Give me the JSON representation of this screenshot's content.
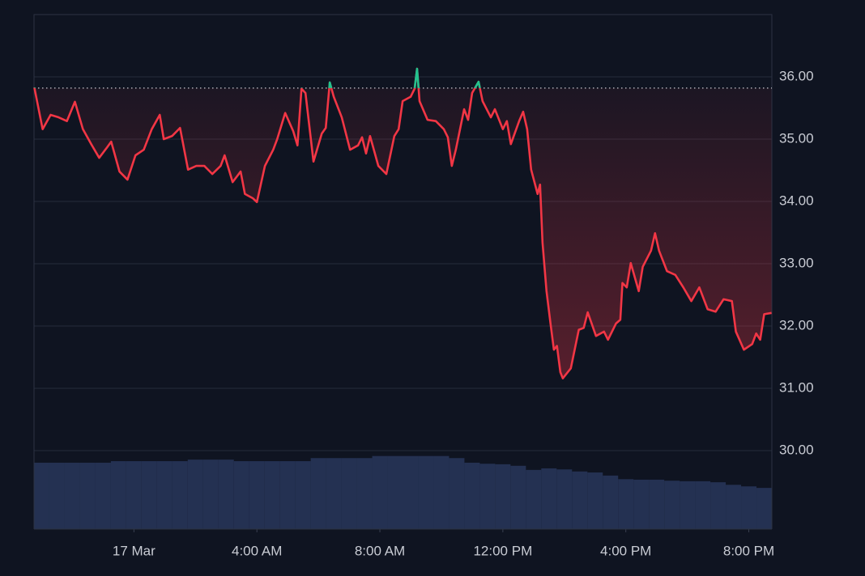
{
  "chart_data": {
    "type": "line",
    "x": [
      -3.24,
      -2.97,
      -2.71,
      -2.45,
      -2.18,
      -1.92,
      -1.66,
      -1.39,
      -1.13,
      -0.87,
      -0.74,
      -0.47,
      -0.21,
      0.05,
      0.32,
      0.58,
      0.84,
      0.97,
      1.24,
      1.5,
      1.76,
      2.03,
      2.29,
      2.55,
      2.82,
      2.95,
      3.21,
      3.47,
      3.61,
      3.87,
      4.0,
      4.26,
      4.53,
      4.66,
      4.92,
      5.18,
      5.32,
      5.45,
      5.58,
      5.84,
      6.11,
      6.24,
      6.37,
      6.5,
      6.76,
      7.03,
      7.29,
      7.42,
      7.55,
      7.68,
      7.95,
      8.21,
      8.47,
      8.61,
      8.74,
      9.0,
      9.13,
      9.21,
      9.29,
      9.55,
      9.82,
      10.08,
      10.21,
      10.34,
      10.47,
      10.74,
      10.87,
      11.0,
      11.21,
      11.34,
      11.61,
      11.74,
      12.0,
      12.13,
      12.26,
      12.53,
      12.66,
      12.79,
      12.92,
      13.13,
      13.21,
      13.29,
      13.42,
      13.55,
      13.66,
      13.76,
      13.87,
      13.95,
      14.21,
      14.47,
      14.63,
      14.76,
      15.03,
      15.29,
      15.42,
      15.68,
      15.82,
      15.89,
      16.03,
      16.16,
      16.42,
      16.55,
      16.82,
      16.95,
      17.08,
      17.34,
      17.61,
      17.87,
      18.13,
      18.39,
      18.66,
      18.92,
      19.18,
      19.45,
      19.58,
      19.84,
      20.11,
      20.24,
      20.37,
      20.5,
      20.74
    ],
    "series": [
      {
        "color": "#f23645",
        "up_color": "#22c38e",
        "values": [
          35.83,
          35.16,
          35.39,
          35.35,
          35.29,
          35.6,
          35.16,
          34.92,
          34.7,
          34.87,
          34.96,
          34.48,
          34.35,
          34.74,
          34.83,
          35.16,
          35.39,
          35.0,
          35.05,
          35.18,
          34.51,
          34.57,
          34.57,
          34.44,
          34.57,
          34.74,
          34.31,
          34.48,
          34.12,
          34.05,
          33.99,
          34.57,
          34.83,
          35.0,
          35.42,
          35.13,
          34.9,
          35.81,
          35.74,
          34.64,
          35.09,
          35.18,
          35.91,
          35.68,
          35.35,
          34.83,
          34.9,
          35.03,
          34.77,
          35.05,
          34.57,
          34.44,
          35.05,
          35.16,
          35.61,
          35.68,
          35.81,
          36.13,
          35.61,
          35.31,
          35.29,
          35.16,
          35.03,
          34.57,
          34.83,
          35.48,
          35.31,
          35.74,
          35.92,
          35.61,
          35.35,
          35.48,
          35.16,
          35.29,
          34.92,
          35.29,
          35.44,
          35.16,
          34.51,
          34.12,
          34.27,
          33.34,
          32.56,
          32.04,
          31.62,
          31.68,
          31.26,
          31.16,
          31.32,
          31.94,
          31.97,
          32.22,
          31.84,
          31.91,
          31.78,
          32.04,
          32.1,
          32.69,
          32.62,
          33.01,
          32.56,
          32.95,
          33.21,
          33.49,
          33.21,
          32.88,
          32.82,
          32.62,
          32.4,
          32.62,
          32.27,
          32.23,
          32.43,
          32.4,
          31.91,
          31.62,
          31.71,
          31.88,
          31.78,
          32.19,
          32.21
        ]
      }
    ],
    "baseline": 35.82,
    "xlim": [
      -3.25,
      20.75
    ],
    "xticks": [
      {
        "value": 0,
        "label": "17 Mar"
      },
      {
        "value": 4,
        "label": "4:00 AM"
      },
      {
        "value": 8,
        "label": "8:00 AM"
      },
      {
        "value": 12,
        "label": "12:00 PM"
      },
      {
        "value": 16,
        "label": "4:00 PM"
      },
      {
        "value": 20,
        "label": "8:00 PM"
      }
    ],
    "ylim": [
      28.74,
      37.0
    ],
    "yticks": [
      {
        "value": 30,
        "label": "30.00"
      },
      {
        "value": 31,
        "label": "31.00"
      },
      {
        "value": 32,
        "label": "32.00"
      },
      {
        "value": 33,
        "label": "33.00"
      },
      {
        "value": 34,
        "label": "34.00"
      },
      {
        "value": 35,
        "label": "35.00"
      },
      {
        "value": 36,
        "label": "36.00"
      }
    ],
    "grid": true,
    "y2lim": [
      0,
      100
    ],
    "volume": {
      "color": "#243152",
      "x": [
        -3.25,
        -2.75,
        -2.25,
        -1.75,
        -1.25,
        -0.75,
        -0.25,
        0.25,
        0.75,
        1.25,
        1.75,
        2.25,
        2.75,
        3.25,
        3.75,
        4.25,
        4.75,
        5.25,
        5.75,
        6.25,
        6.75,
        7.25,
        7.75,
        8.25,
        8.75,
        9.25,
        9.75,
        10.25,
        10.75,
        11.25,
        11.75,
        12.25,
        12.75,
        13.25,
        13.75,
        14.25,
        14.75,
        15.25,
        15.75,
        16.25,
        16.75,
        17.25,
        17.75,
        18.25,
        18.75,
        19.25,
        19.75,
        20.25
      ],
      "values": [
        12.9,
        12.9,
        12.9,
        12.9,
        12.9,
        13.2,
        13.2,
        13.2,
        13.2,
        13.2,
        13.5,
        13.5,
        13.5,
        13.2,
        13.2,
        13.2,
        13.2,
        13.2,
        13.8,
        13.8,
        13.8,
        13.8,
        14.2,
        14.2,
        14.2,
        14.2,
        14.2,
        13.8,
        12.9,
        12.7,
        12.6,
        12.3,
        11.5,
        11.8,
        11.6,
        11.2,
        11.0,
        10.4,
        9.7,
        9.6,
        9.6,
        9.4,
        9.3,
        9.3,
        9.1,
        8.6,
        8.3,
        8.0
      ]
    }
  }
}
